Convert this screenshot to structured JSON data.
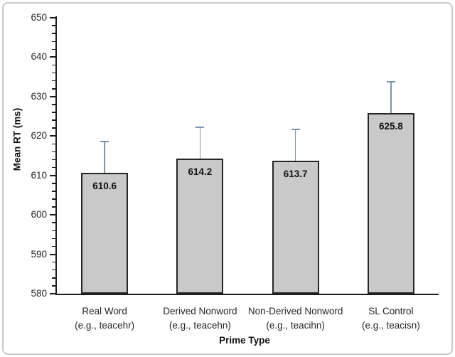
{
  "figure": {
    "background": "#ffffff",
    "border_color": "#c9c9c9"
  },
  "chart_data": {
    "type": "bar",
    "title": "",
    "xlabel": "Prime Type",
    "ylabel": "Mean RT (ms)",
    "ylim": [
      580,
      650
    ],
    "ytick_step": 10,
    "yminor_step": 2,
    "grid": false,
    "legend_position": "none",
    "categories": [
      "Real Word",
      "Derived Nonword",
      "Non-Derived Nonword",
      "SL Control"
    ],
    "category_examples": [
      "(e.g., teacehr)",
      "(e.g., teacehn)",
      "(e.g., teacihn)",
      "(e.g., teacisn)"
    ],
    "values": [
      610.6,
      614.2,
      613.7,
      625.8
    ],
    "data_labels": [
      "610.6",
      "614.2",
      "613.7",
      "625.8"
    ],
    "error_upper": [
      8.0,
      8.0,
      7.9,
      8.0
    ],
    "colors": {
      "bar_fill": "#c9c9c9",
      "bar_border": "#262626",
      "error_bar": "#7e93ac",
      "axis": "#1a1a1a",
      "text": "#262626"
    }
  }
}
